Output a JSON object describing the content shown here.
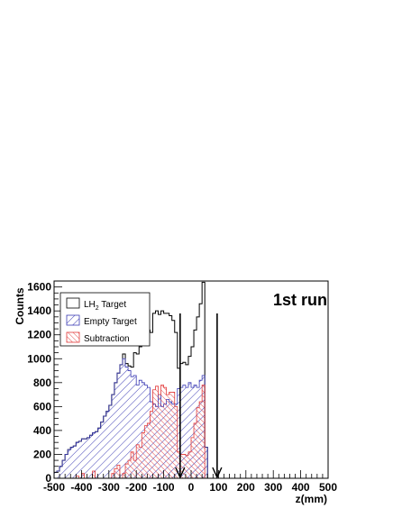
{
  "chart_data": {
    "type": "histogram",
    "title": "1st run",
    "xlabel": "z(mm)",
    "ylabel": "Counts",
    "xlim": [
      -500,
      500
    ],
    "ylim": [
      0,
      1650
    ],
    "xticks": [
      -500,
      -400,
      -300,
      -200,
      -100,
      0,
      100,
      200,
      300,
      400,
      500
    ],
    "yticks": [
      0,
      200,
      400,
      600,
      800,
      1000,
      1200,
      1400,
      1600
    ],
    "legend_position": "top-left",
    "cut_arrows": [
      -40,
      95
    ],
    "bin_width": 10,
    "bin_start": -500,
    "series": [
      {
        "name": "LH2 Target",
        "name_main": "LH",
        "name_sub": "2",
        "name_rest": " Target",
        "style": "outline",
        "color": "#000000",
        "values": [
          50,
          60,
          100,
          150,
          200,
          240,
          260,
          270,
          300,
          310,
          330,
          330,
          340,
          360,
          380,
          390,
          420,
          470,
          520,
          560,
          610,
          700,
          800,
          880,
          950,
          1040,
          960,
          940,
          930,
          1050,
          1040,
          1100,
          1210,
          1220,
          1240,
          1220,
          1380,
          1400,
          1370,
          1400,
          1380,
          1380,
          1360,
          1320,
          1220,
          920,
          960,
          970,
          950,
          1020,
          1100,
          1240,
          1350,
          1460,
          1640,
          260,
          0,
          0,
          0,
          0,
          0,
          0,
          0,
          0,
          0,
          0,
          0,
          0,
          0,
          0,
          0,
          0,
          0,
          0,
          0,
          0,
          0,
          0,
          0,
          0,
          0,
          0,
          0,
          0,
          0,
          0,
          0,
          0,
          0,
          0,
          0,
          0,
          0,
          0,
          0,
          0,
          0,
          0,
          0,
          0,
          0
        ]
      },
      {
        "name": "Empty Target",
        "style": "hatch",
        "color": "#3a3ab4",
        "values": [
          50,
          60,
          100,
          150,
          200,
          240,
          260,
          270,
          300,
          310,
          330,
          330,
          340,
          360,
          380,
          390,
          420,
          470,
          520,
          560,
          610,
          700,
          800,
          880,
          950,
          1000,
          930,
          900,
          850,
          860,
          780,
          820,
          800,
          780,
          760,
          640,
          620,
          600,
          700,
          600,
          620,
          660,
          640,
          620,
          620,
          750,
          760,
          780,
          760,
          800,
          760,
          780,
          760,
          820,
          860,
          260,
          0,
          0,
          0,
          0,
          0,
          0,
          0,
          0,
          0,
          0,
          0,
          0,
          0,
          0,
          0,
          0,
          0,
          0,
          0,
          0,
          0,
          0,
          0,
          0,
          0,
          0,
          0,
          0,
          0,
          0,
          0,
          0,
          0,
          0,
          0,
          0,
          0,
          0,
          0,
          0,
          0,
          0,
          0,
          0,
          0
        ]
      },
      {
        "name": "Subtraction",
        "style": "hatch",
        "color": "#e23a3a",
        "values": [
          0,
          0,
          0,
          0,
          0,
          0,
          0,
          0,
          20,
          0,
          40,
          0,
          0,
          0,
          60,
          0,
          0,
          0,
          0,
          0,
          0,
          40,
          80,
          110,
          0,
          40,
          120,
          150,
          220,
          150,
          280,
          260,
          380,
          440,
          460,
          560,
          740,
          770,
          700,
          780,
          760,
          700,
          720,
          720,
          600,
          220,
          200,
          200,
          190,
          220,
          340,
          460,
          590,
          640,
          780,
          0,
          0,
          0,
          0,
          0,
          0,
          0,
          0,
          0,
          0,
          0,
          0,
          0,
          0,
          0,
          0,
          0,
          0,
          0,
          0,
          0,
          0,
          0,
          0,
          0,
          0,
          0,
          0,
          0,
          0,
          0,
          0,
          0,
          0,
          0,
          0,
          0,
          0,
          0,
          0,
          0,
          0,
          0,
          0,
          0,
          0
        ]
      }
    ]
  }
}
